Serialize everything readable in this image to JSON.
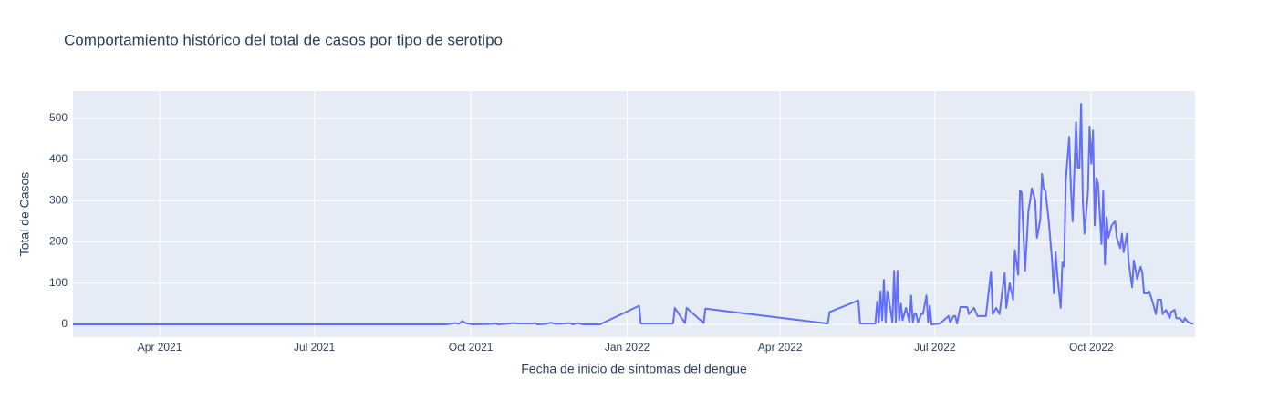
{
  "chart_data": {
    "type": "line",
    "title": "Comportamiento histórico del total de casos por tipo de serotipo",
    "x_label": "Fecha de inicio de síntomas del dengue",
    "y_label": "Total de Casos",
    "color": "#636efa",
    "grid": true,
    "xlim": [
      "2021-02-09",
      "2022-12-01"
    ],
    "ylim": [
      -31,
      566
    ],
    "yticks": [
      0,
      100,
      200,
      300,
      400,
      500
    ],
    "xticks": [
      {
        "value": "2021-04-01",
        "label": "Apr 2021"
      },
      {
        "value": "2021-07-01",
        "label": "Jul 2021"
      },
      {
        "value": "2021-10-01",
        "label": "Oct 2021"
      },
      {
        "value": "2022-01-01",
        "label": "Jan 2022"
      },
      {
        "value": "2022-04-01",
        "label": "Apr 2022"
      },
      {
        "value": "2022-07-01",
        "label": "Jul 2022"
      },
      {
        "value": "2022-10-01",
        "label": "Oct 2022"
      }
    ],
    "x": [
      "2021-02-09",
      "2021-09-16",
      "2021-09-20",
      "2021-09-22",
      "2021-09-24",
      "2021-09-26",
      "2021-09-28",
      "2021-10-02",
      "2021-10-13",
      "2021-10-16",
      "2021-10-17",
      "2021-10-24",
      "2021-10-26",
      "2021-10-29",
      "2021-11-06",
      "2021-11-08",
      "2021-11-09",
      "2021-11-14",
      "2021-11-17",
      "2021-11-20",
      "2021-11-25",
      "2021-11-28",
      "2021-11-30",
      "2021-12-03",
      "2021-12-06",
      "2021-12-16",
      "2022-01-08",
      "2022-01-09",
      "2022-01-28",
      "2022-01-29",
      "2022-02-04",
      "2022-02-05",
      "2022-02-15",
      "2022-02-16",
      "2022-04-29",
      "2022-04-30",
      "2022-05-17",
      "2022-05-18",
      "2022-05-27",
      "2022-05-28",
      "2022-05-29",
      "2022-05-30",
      "2022-05-31",
      "2022-06-01",
      "2022-06-02",
      "2022-06-03",
      "2022-06-04",
      "2022-06-06",
      "2022-06-07",
      "2022-06-08",
      "2022-06-09",
      "2022-06-10",
      "2022-06-11",
      "2022-06-12",
      "2022-06-14",
      "2022-06-16",
      "2022-06-17",
      "2022-06-18",
      "2022-06-19",
      "2022-06-20",
      "2022-06-21",
      "2022-06-23",
      "2022-06-24",
      "2022-06-26",
      "2022-06-27",
      "2022-06-28",
      "2022-06-29",
      "2022-07-04",
      "2022-07-09",
      "2022-07-10",
      "2022-07-12",
      "2022-07-13",
      "2022-07-14",
      "2022-07-16",
      "2022-07-20",
      "2022-07-21",
      "2022-07-24",
      "2022-07-26",
      "2022-07-31",
      "2022-08-03",
      "2022-08-04",
      "2022-08-06",
      "2022-08-08",
      "2022-08-11",
      "2022-08-12",
      "2022-08-14",
      "2022-08-16",
      "2022-08-17",
      "2022-08-19",
      "2022-08-20",
      "2022-08-21",
      "2022-08-23",
      "2022-08-25",
      "2022-08-26",
      "2022-08-27",
      "2022-08-29",
      "2022-08-30",
      "2022-09-01",
      "2022-09-02",
      "2022-09-03",
      "2022-09-04",
      "2022-09-06",
      "2022-09-08",
      "2022-09-09",
      "2022-09-10",
      "2022-09-11",
      "2022-09-13",
      "2022-09-14",
      "2022-09-15",
      "2022-09-16",
      "2022-09-18",
      "2022-09-19",
      "2022-09-20",
      "2022-09-22",
      "2022-09-23",
      "2022-09-24",
      "2022-09-25",
      "2022-09-26",
      "2022-09-27",
      "2022-09-29",
      "2022-09-30",
      "2022-10-01",
      "2022-10-02",
      "2022-10-03",
      "2022-10-04",
      "2022-10-05",
      "2022-10-07",
      "2022-10-08",
      "2022-10-09",
      "2022-10-10",
      "2022-10-11",
      "2022-10-13",
      "2022-10-15",
      "2022-10-16",
      "2022-10-18",
      "2022-10-19",
      "2022-10-20",
      "2022-10-22",
      "2022-10-23",
      "2022-10-25",
      "2022-10-26",
      "2022-10-28",
      "2022-10-30",
      "2022-10-31",
      "2022-11-01",
      "2022-11-03",
      "2022-11-04",
      "2022-11-06",
      "2022-11-08",
      "2022-11-09",
      "2022-11-11",
      "2022-11-12",
      "2022-11-14",
      "2022-11-16",
      "2022-11-17",
      "2022-11-19",
      "2022-11-20",
      "2022-11-22",
      "2022-11-24",
      "2022-11-25",
      "2022-11-27",
      "2022-11-29",
      "2022-11-30"
    ],
    "values": [
      0,
      0,
      2,
      3,
      1,
      8,
      3,
      0,
      1,
      2,
      0,
      2,
      3,
      2,
      2,
      3,
      0,
      1,
      4,
      1,
      2,
      3,
      0,
      3,
      0,
      0,
      45,
      2,
      2,
      40,
      3,
      40,
      3,
      38,
      2,
      30,
      58,
      2,
      2,
      55,
      5,
      80,
      10,
      108,
      5,
      80,
      60,
      5,
      130,
      5,
      130,
      10,
      50,
      10,
      40,
      5,
      70,
      5,
      25,
      25,
      5,
      25,
      25,
      70,
      5,
      45,
      0,
      2,
      20,
      5,
      20,
      20,
      2,
      42,
      42,
      25,
      40,
      20,
      20,
      128,
      25,
      40,
      25,
      125,
      40,
      100,
      60,
      180,
      120,
      325,
      320,
      130,
      275,
      300,
      330,
      300,
      210,
      255,
      365,
      330,
      325,
      250,
      150,
      75,
      175,
      120,
      40,
      150,
      140,
      350,
      455,
      330,
      250,
      490,
      380,
      380,
      535,
      300,
      220,
      320,
      480,
      390,
      470,
      240,
      355,
      340,
      195,
      325,
      145,
      260,
      210,
      240,
      250,
      210,
      185,
      220,
      175,
      220,
      150,
      90,
      155,
      110,
      140,
      125,
      75,
      75,
      80,
      55,
      25,
      60,
      60,
      25,
      35,
      15,
      30,
      35,
      15,
      15,
      5,
      15,
      5,
      2,
      2
    ]
  }
}
